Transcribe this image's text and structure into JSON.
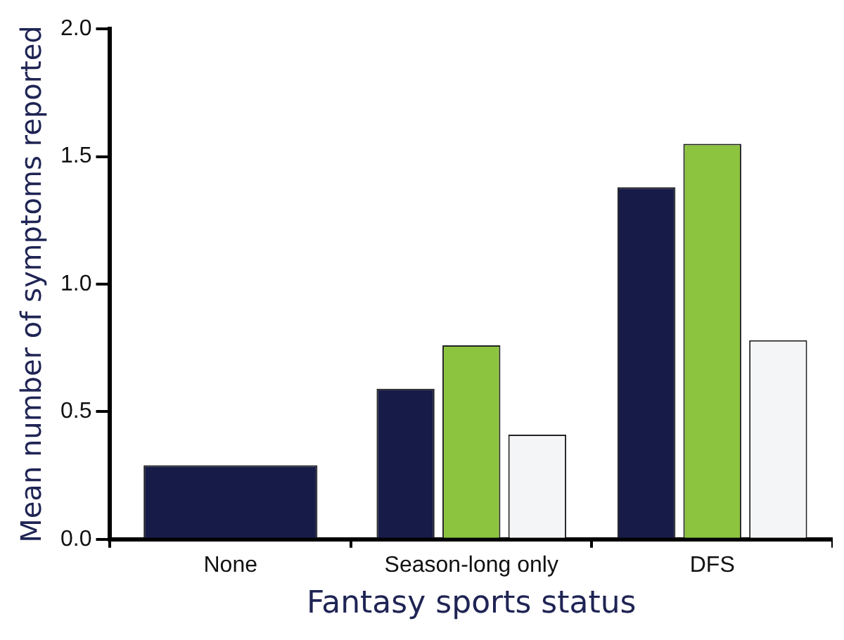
{
  "chart_data": {
    "type": "bar",
    "xlabel": "Fantasy sports status",
    "ylabel": "Mean number of symptoms reported",
    "categories": [
      "None",
      "Season-long only",
      "DFS"
    ],
    "series": [
      {
        "color": "#171b47",
        "values": [
          0.29,
          0.59,
          1.38
        ]
      },
      {
        "color": "#8cc43f",
        "values": [
          null,
          0.76,
          1.55
        ]
      },
      {
        "color": "#f4f5f7",
        "values": [
          null,
          0.41,
          0.78
        ]
      }
    ],
    "ylim": [
      0,
      2
    ],
    "yticks": [
      {
        "value": 0,
        "label": "0.0"
      },
      {
        "value": 0.5,
        "label": "0.5"
      },
      {
        "value": 1,
        "label": "1.0"
      },
      {
        "value": 1.5,
        "label": "1.5"
      },
      {
        "value": 2,
        "label": "2.0"
      }
    ],
    "grid": false,
    "legend": false
  }
}
